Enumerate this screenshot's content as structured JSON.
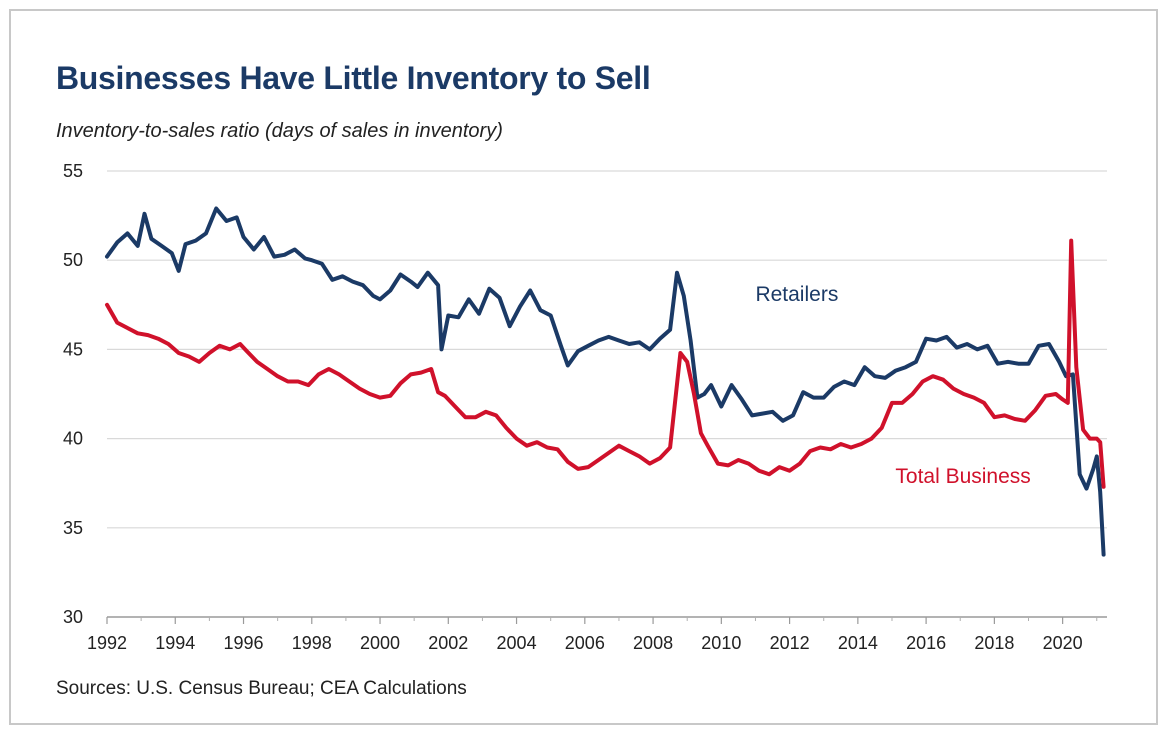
{
  "chart_data": {
    "type": "line",
    "title": "Businesses Have Little Inventory to Sell",
    "subtitle": "Inventory-to-sales ratio (days of sales in inventory)",
    "source": "Sources: U.S. Census Bureau; CEA Calculations",
    "xlim": [
      1992,
      2021.3
    ],
    "ylim": [
      30,
      55
    ],
    "x_ticks": [
      "1992",
      "1994",
      "1996",
      "1998",
      "2000",
      "2002",
      "2004",
      "2006",
      "2008",
      "2010",
      "2012",
      "2014",
      "2016",
      "2018",
      "2020"
    ],
    "y_ticks": [
      "30",
      "35",
      "40",
      "45",
      "50",
      "55"
    ],
    "grid": "horizontal",
    "series": [
      {
        "name": "Retailers",
        "label": "Retailers",
        "color": "#1b3a66",
        "label_anchor": [
          2011.0,
          47.7
        ],
        "x": [
          1992.0,
          1992.3,
          1992.6,
          1992.9,
          1993.1,
          1993.3,
          1993.6,
          1993.9,
          1994.1,
          1994.3,
          1994.6,
          1994.9,
          1995.2,
          1995.5,
          1995.8,
          1996.0,
          1996.3,
          1996.6,
          1996.9,
          1997.2,
          1997.5,
          1997.8,
          1998.0,
          1998.3,
          1998.6,
          1998.9,
          1999.2,
          1999.5,
          1999.8,
          2000.0,
          2000.3,
          2000.6,
          2000.9,
          2001.1,
          2001.4,
          2001.7,
          2001.8,
          2002.0,
          2002.3,
          2002.6,
          2002.9,
          2003.2,
          2003.5,
          2003.8,
          2004.1,
          2004.4,
          2004.7,
          2005.0,
          2005.3,
          2005.5,
          2005.8,
          2006.1,
          2006.4,
          2006.7,
          2007.0,
          2007.3,
          2007.6,
          2007.9,
          2008.2,
          2008.5,
          2008.7,
          2008.9,
          2009.1,
          2009.3,
          2009.5,
          2009.7,
          2010.0,
          2010.3,
          2010.6,
          2010.9,
          2011.2,
          2011.5,
          2011.8,
          2012.1,
          2012.4,
          2012.7,
          2013.0,
          2013.3,
          2013.6,
          2013.9,
          2014.2,
          2014.5,
          2014.8,
          2015.1,
          2015.4,
          2015.7,
          2016.0,
          2016.3,
          2016.6,
          2016.9,
          2017.2,
          2017.5,
          2017.8,
          2018.1,
          2018.4,
          2018.7,
          2019.0,
          2019.3,
          2019.6,
          2019.9,
          2020.1,
          2020.3,
          2020.5,
          2020.7,
          2020.9,
          2021.0,
          2021.1,
          2021.2
        ],
        "values": [
          50.2,
          51.0,
          51.5,
          50.8,
          52.6,
          51.2,
          50.8,
          50.4,
          49.4,
          50.9,
          51.1,
          51.5,
          52.9,
          52.2,
          52.4,
          51.3,
          50.6,
          51.3,
          50.2,
          50.3,
          50.6,
          50.1,
          50.0,
          49.8,
          48.9,
          49.1,
          48.8,
          48.6,
          48.0,
          47.8,
          48.3,
          49.2,
          48.8,
          48.5,
          49.3,
          48.6,
          45.0,
          46.9,
          46.8,
          47.8,
          47.0,
          48.4,
          47.9,
          46.3,
          47.4,
          48.3,
          47.2,
          46.9,
          45.2,
          44.1,
          44.9,
          45.2,
          45.5,
          45.7,
          45.5,
          45.3,
          45.4,
          45.0,
          45.6,
          46.1,
          49.3,
          48.0,
          45.5,
          42.3,
          42.5,
          43.0,
          41.8,
          43.0,
          42.2,
          41.3,
          41.4,
          41.5,
          41.0,
          41.3,
          42.6,
          42.3,
          42.3,
          42.9,
          43.2,
          43.0,
          44.0,
          43.5,
          43.4,
          43.8,
          44.0,
          44.3,
          45.6,
          45.5,
          45.7,
          45.1,
          45.3,
          45.0,
          45.2,
          44.2,
          44.3,
          44.2,
          44.2,
          45.2,
          45.3,
          44.3,
          43.5,
          43.6,
          38.0,
          37.2,
          38.3,
          39.0,
          37.0,
          33.5
        ]
      },
      {
        "name": "Total Business",
        "label": "Total Business",
        "color": "#d0112b",
        "label_anchor": [
          2015.1,
          37.5
        ],
        "x": [
          1992.0,
          1992.3,
          1992.6,
          1992.9,
          1993.2,
          1993.5,
          1993.8,
          1994.1,
          1994.4,
          1994.7,
          1995.0,
          1995.3,
          1995.6,
          1995.9,
          1996.1,
          1996.4,
          1996.7,
          1997.0,
          1997.3,
          1997.6,
          1997.9,
          1998.2,
          1998.5,
          1998.8,
          1999.1,
          1999.4,
          1999.7,
          2000.0,
          2000.3,
          2000.6,
          2000.9,
          2001.2,
          2001.5,
          2001.7,
          2001.9,
          2002.2,
          2002.5,
          2002.8,
          2003.1,
          2003.4,
          2003.7,
          2004.0,
          2004.3,
          2004.6,
          2004.9,
          2005.2,
          2005.5,
          2005.8,
          2006.1,
          2006.4,
          2006.7,
          2007.0,
          2007.3,
          2007.6,
          2007.9,
          2008.2,
          2008.5,
          2008.8,
          2009.0,
          2009.2,
          2009.4,
          2009.6,
          2009.9,
          2010.2,
          2010.5,
          2010.8,
          2011.1,
          2011.4,
          2011.7,
          2012.0,
          2012.3,
          2012.6,
          2012.9,
          2013.2,
          2013.5,
          2013.8,
          2014.1,
          2014.4,
          2014.7,
          2015.0,
          2015.3,
          2015.6,
          2015.9,
          2016.2,
          2016.5,
          2016.8,
          2017.1,
          2017.4,
          2017.7,
          2018.0,
          2018.3,
          2018.6,
          2018.9,
          2019.2,
          2019.5,
          2019.8,
          2020.0,
          2020.15,
          2020.25,
          2020.4,
          2020.6,
          2020.8,
          2021.0,
          2021.1,
          2021.2
        ],
        "values": [
          47.5,
          46.5,
          46.2,
          45.9,
          45.8,
          45.6,
          45.3,
          44.8,
          44.6,
          44.3,
          44.8,
          45.2,
          45.0,
          45.3,
          44.9,
          44.3,
          43.9,
          43.5,
          43.2,
          43.2,
          43.0,
          43.6,
          43.9,
          43.6,
          43.2,
          42.8,
          42.5,
          42.3,
          42.4,
          43.1,
          43.6,
          43.7,
          43.9,
          42.6,
          42.4,
          41.8,
          41.2,
          41.2,
          41.5,
          41.3,
          40.6,
          40.0,
          39.6,
          39.8,
          39.5,
          39.4,
          38.7,
          38.3,
          38.4,
          38.8,
          39.2,
          39.6,
          39.3,
          39.0,
          38.6,
          38.9,
          39.5,
          44.8,
          44.3,
          42.5,
          40.3,
          39.6,
          38.6,
          38.5,
          38.8,
          38.6,
          38.2,
          38.0,
          38.4,
          38.2,
          38.6,
          39.3,
          39.5,
          39.4,
          39.7,
          39.5,
          39.7,
          40.0,
          40.6,
          42.0,
          42.0,
          42.5,
          43.2,
          43.5,
          43.3,
          42.8,
          42.5,
          42.3,
          42.0,
          41.2,
          41.3,
          41.1,
          41.0,
          41.6,
          42.4,
          42.5,
          42.2,
          42.0,
          51.1,
          44.0,
          40.5,
          40.0,
          40.0,
          39.8,
          37.3
        ]
      }
    ]
  }
}
